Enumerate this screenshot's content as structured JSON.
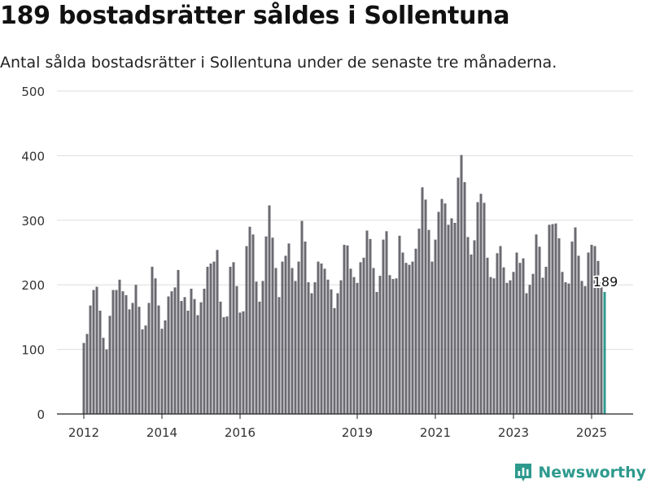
{
  "header": {
    "title": "189 bostadsrätter såldes i Sollentuna",
    "subtitle": "Antal sålda bostadsrätter i Sollentuna under de senaste tre månaderna."
  },
  "brand": {
    "name": "Newsworthy",
    "color": "#2e9a8e"
  },
  "chart_data": {
    "type": "bar",
    "title": "",
    "xlabel": "",
    "ylabel": "",
    "ylim": [
      0,
      500
    ],
    "yticks": [
      0,
      100,
      200,
      300,
      400,
      500
    ],
    "grid": true,
    "x_tick_labels": [
      {
        "label": "2012",
        "at_index": 0
      },
      {
        "label": "2014",
        "at_index": 24
      },
      {
        "label": "2016",
        "at_index": 48
      },
      {
        "label": "2019",
        "at_index": 84
      },
      {
        "label": "2021",
        "at_index": 108
      },
      {
        "label": "2023",
        "at_index": 132
      },
      {
        "label": "2025",
        "at_index": 156
      }
    ],
    "bar_color": "#6b6a70",
    "highlight_color": "#2e9a8e",
    "highlight_label": "189",
    "values": [
      110,
      124,
      168,
      192,
      197,
      160,
      118,
      100,
      152,
      192,
      192,
      208,
      190,
      184,
      162,
      172,
      200,
      166,
      131,
      137,
      172,
      228,
      210,
      168,
      132,
      145,
      182,
      190,
      196,
      223,
      175,
      181,
      160,
      194,
      178,
      153,
      173,
      194,
      228,
      233,
      236,
      254,
      174,
      150,
      151,
      228,
      235,
      198,
      157,
      159,
      260,
      290,
      278,
      205,
      174,
      206,
      275,
      323,
      273,
      226,
      181,
      236,
      245,
      264,
      226,
      206,
      236,
      299,
      267,
      204,
      187,
      204,
      236,
      233,
      225,
      208,
      193,
      164,
      187,
      207,
      262,
      261,
      225,
      212,
      203,
      235,
      242,
      284,
      271,
      226,
      189,
      214,
      270,
      283,
      215,
      209,
      210,
      276,
      250,
      234,
      231,
      236,
      256,
      287,
      351,
      332,
      285,
      236,
      270,
      313,
      333,
      326,
      293,
      303,
      296,
      366,
      401,
      359,
      274,
      247,
      269,
      328,
      341,
      327,
      242,
      212,
      210,
      249,
      260,
      227,
      203,
      207,
      220,
      250,
      234,
      241,
      187,
      200,
      217,
      278,
      259,
      211,
      228,
      293,
      294,
      295,
      272,
      220,
      204,
      202,
      267,
      289,
      245,
      206,
      198,
      250,
      262,
      260,
      237,
      204,
      189
    ]
  }
}
